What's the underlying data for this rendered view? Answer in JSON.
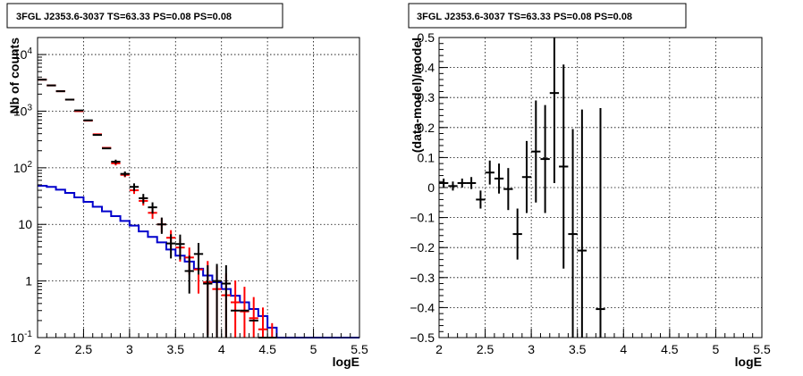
{
  "chart_data": [
    {
      "type": "histogram",
      "title": "3FGL J2353.6-3037 TS=63.33 PS=0.08 PS=0.08",
      "xlabel": "logE",
      "ylabel": "Nb of counts",
      "xlim": [
        2,
        5.5
      ],
      "ylim": [
        0.1,
        20000
      ],
      "y_scale": "log",
      "grid": true,
      "x_ticks": [
        {
          "v": 2,
          "label": "2"
        },
        {
          "v": 2.5,
          "label": "2.5"
        },
        {
          "v": 3,
          "label": "3"
        },
        {
          "v": 3.5,
          "label": "3.5"
        },
        {
          "v": 4,
          "label": "4"
        },
        {
          "v": 4.5,
          "label": "4.5"
        },
        {
          "v": 5,
          "label": "5"
        },
        {
          "v": 5.5,
          "label": "5.5"
        }
      ],
      "y_ticks": [
        {
          "v": 0.1,
          "base": "10",
          "exp": "-1"
        },
        {
          "v": 1,
          "base": "1",
          "exp": ""
        },
        {
          "v": 10,
          "base": "10",
          "exp": ""
        },
        {
          "v": 100,
          "base": "10",
          "exp": "2"
        },
        {
          "v": 1000,
          "base": "10",
          "exp": "3"
        },
        {
          "v": 10000,
          "base": "10",
          "exp": "4"
        }
      ],
      "series": [
        {
          "kind": "model",
          "color": "#ff0000",
          "x": [
            2.05,
            2.15,
            2.25,
            2.35,
            2.45,
            2.55,
            2.65,
            2.75,
            2.85,
            2.95,
            3.05,
            3.15,
            3.25,
            3.35,
            3.45,
            3.55,
            3.65,
            3.75,
            3.85,
            3.95,
            4.05,
            4.15,
            4.25,
            4.35,
            4.45,
            4.55
          ],
          "y": [
            3600,
            2850,
            2250,
            1600,
            1000,
            680,
            390,
            225,
            120,
            75,
            40,
            26,
            16,
            10,
            5.8,
            3.9,
            2.6,
            1.6,
            0.95,
            0.72,
            0.56,
            0.42,
            0.29,
            0.22,
            0.14,
            0.1
          ],
          "yerr_lo": [
            0,
            0,
            0,
            0,
            0,
            0,
            0,
            0,
            10,
            7,
            5.5,
            4.5,
            3.5,
            2.8,
            2.1,
            1.7,
            1.3,
            1.0,
            0.84,
            0.62,
            0.46,
            0.32,
            0.19,
            0.12,
            0.04,
            0
          ],
          "yerr_hi": [
            0,
            0,
            0,
            0,
            0,
            0,
            0,
            0,
            10,
            7,
            5.5,
            4.5,
            3.5,
            2.8,
            2.1,
            1.7,
            1.3,
            1.0,
            1.3,
            1.1,
            0.8,
            0.6,
            0.5,
            0.3,
            0.2,
            0.08
          ]
        },
        {
          "kind": "data",
          "color": "#000000",
          "x": [
            2.05,
            2.15,
            2.25,
            2.35,
            2.45,
            2.55,
            2.65,
            2.75,
            2.85,
            2.95,
            3.05,
            3.15,
            3.25,
            3.35,
            3.45,
            3.55,
            3.65,
            3.75,
            3.85,
            3.95,
            4.05,
            4.15,
            4.25,
            4.35,
            4.45,
            4.55
          ],
          "y": [
            3600,
            2850,
            2250,
            1600,
            1030,
            690,
            380,
            220,
            128,
            78,
            46,
            29,
            20,
            10,
            4.6,
            4.5,
            1.5,
            3.0,
            0.9,
            1.0,
            0.9,
            0.3,
            0.3,
            0.2,
            0.1,
            0.1
          ],
          "yerr_lo": [
            0,
            0,
            0,
            0,
            0,
            0,
            0,
            0,
            11,
            8,
            7,
            5.5,
            4.5,
            3.2,
            2.1,
            2.1,
            0.9,
            1.7,
            0.8,
            0.9,
            0.8,
            0,
            0,
            0,
            0,
            0
          ],
          "yerr_hi": [
            0,
            0,
            0,
            0,
            0,
            0,
            0,
            0,
            11,
            8,
            7,
            5.5,
            4.5,
            3.2,
            2.1,
            2.1,
            1.3,
            1.7,
            1.0,
            1.0,
            1.0,
            0,
            0,
            0,
            0,
            0
          ]
        },
        {
          "kind": "step",
          "color": "#0000cc",
          "edges": [
            2.0,
            2.1,
            2.2,
            2.3,
            2.4,
            2.5,
            2.6,
            2.7,
            2.8,
            2.9,
            3.0,
            3.1,
            3.2,
            3.3,
            3.4,
            3.5,
            3.6,
            3.7,
            3.8,
            3.9,
            4.0,
            4.1,
            4.2,
            4.3,
            4.4,
            4.5,
            4.6,
            5.5
          ],
          "y": [
            48,
            46,
            41,
            36,
            30,
            25,
            20.5,
            17,
            14,
            11.5,
            9.5,
            7.5,
            6.0,
            4.8,
            3.6,
            2.8,
            2.2,
            1.65,
            1.25,
            0.95,
            0.72,
            0.55,
            0.42,
            0.32,
            0.24,
            0.15,
            0.1
          ]
        }
      ]
    },
    {
      "type": "scatter",
      "title": "3FGL J2353.6-3037 TS=63.33 PS=0.08 PS=0.08",
      "xlabel": "logE",
      "ylabel": "(data-model)/model",
      "xlim": [
        2,
        5.5
      ],
      "ylim": [
        -0.5,
        0.5
      ],
      "grid": true,
      "x_ticks": [
        {
          "v": 2,
          "label": "2"
        },
        {
          "v": 2.5,
          "label": "2.5"
        },
        {
          "v": 3,
          "label": "3"
        },
        {
          "v": 3.5,
          "label": "3.5"
        },
        {
          "v": 4,
          "label": "4"
        },
        {
          "v": 4.5,
          "label": "4.5"
        },
        {
          "v": 5,
          "label": "5"
        },
        {
          "v": 5.5,
          "label": "5.5"
        }
      ],
      "y_ticks": [
        {
          "v": -0.5,
          "label": "−0.5"
        },
        {
          "v": -0.4,
          "label": "−0.4"
        },
        {
          "v": -0.3,
          "label": "−0.3"
        },
        {
          "v": -0.2,
          "label": "−0.2"
        },
        {
          "v": -0.1,
          "label": "−0.1"
        },
        {
          "v": 0,
          "label": "0"
        },
        {
          "v": 0.1,
          "label": "0.1"
        },
        {
          "v": 0.2,
          "label": "0.2"
        },
        {
          "v": 0.3,
          "label": "0.3"
        },
        {
          "v": 0.4,
          "label": "0.4"
        },
        {
          "v": 0.5,
          "label": "0.5"
        }
      ],
      "points": {
        "color": "#000000",
        "x": [
          2.05,
          2.15,
          2.25,
          2.35,
          2.45,
          2.55,
          2.65,
          2.75,
          2.85,
          2.95,
          3.05,
          3.15,
          3.25,
          3.35,
          3.45,
          3.55,
          3.75
        ],
        "y": [
          0.015,
          0.005,
          0.015,
          0.015,
          -0.04,
          0.05,
          0.03,
          -0.005,
          -0.155,
          0.035,
          0.12,
          0.095,
          0.315,
          0.07,
          -0.155,
          -0.21,
          -0.405
        ],
        "yerr_lo": [
          0.015,
          0.015,
          0.015,
          0.02,
          0.03,
          0.04,
          0.05,
          0.07,
          0.085,
          0.12,
          0.17,
          0.18,
          0.3,
          0.34,
          0.35,
          0.29,
          0.1
        ],
        "yerr_hi": [
          0.015,
          0.015,
          0.015,
          0.02,
          0.03,
          0.04,
          0.05,
          0.07,
          0.085,
          0.12,
          0.17,
          0.18,
          0.19,
          0.34,
          0.35,
          0.47,
          0.67
        ]
      }
    }
  ]
}
